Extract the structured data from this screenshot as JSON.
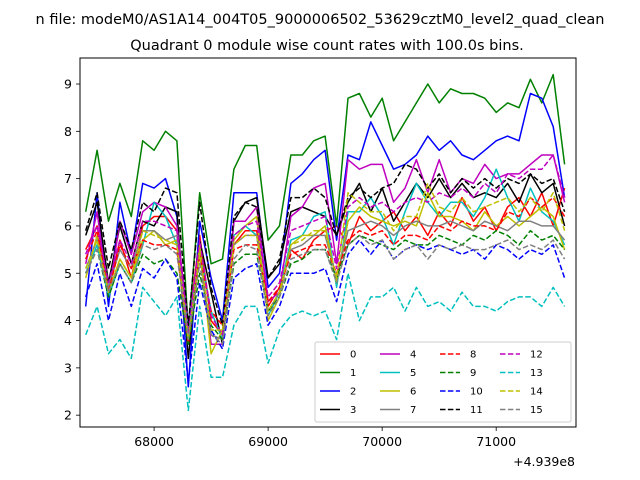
{
  "chart_data": {
    "type": "line",
    "suptitle": "n file: modeM0/AS1A14_004T05_9000006502_53629cztM0_level2_quad_clean",
    "title": "Quadrant 0 module wise count rates with 100.0s bins.",
    "xlabel": "",
    "ylabel": "",
    "x_offset_label": "+4.939e8",
    "xlim": [
      67350,
      71700
    ],
    "ylim": [
      1.75,
      9.55
    ],
    "xticks": [
      68000,
      69000,
      70000,
      71000
    ],
    "xtick_labels": [
      "68000",
      "69000",
      "70000",
      "71000"
    ],
    "yticks": [
      2,
      3,
      4,
      5,
      6,
      7,
      8,
      9
    ],
    "ytick_labels": [
      "2",
      "3",
      "4",
      "5",
      "6",
      "7",
      "8",
      "9"
    ],
    "grid": false,
    "legend_position": "lower-right",
    "x": [
      67400,
      67500,
      67600,
      67700,
      67800,
      67900,
      68000,
      68100,
      68200,
      68300,
      68400,
      68500,
      68600,
      68700,
      68800,
      68900,
      69000,
      69100,
      69200,
      69300,
      69400,
      69500,
      69600,
      69700,
      69800,
      69900,
      70000,
      70100,
      70200,
      70300,
      70400,
      70500,
      70600,
      70700,
      70800,
      70900,
      71000,
      71100,
      71200,
      71300,
      71400,
      71500,
      71600
    ],
    "series": [
      {
        "name": "0",
        "color": "#ff0000",
        "dash": "solid",
        "values": [
          5.5,
          6.0,
          4.6,
          5.7,
          4.9,
          6.0,
          6.2,
          6.2,
          5.9,
          3.8,
          5.8,
          4.0,
          3.7,
          5.6,
          5.9,
          5.9,
          4.3,
          4.7,
          5.5,
          5.3,
          5.7,
          5.9,
          6.0,
          5.6,
          6.2,
          5.9,
          6.1,
          6.3,
          5.9,
          6.2,
          5.8,
          6.3,
          6.0,
          6.6,
          6.1,
          6.4,
          5.9,
          6.4,
          6.6,
          6.2,
          6.7,
          6.0,
          6.8
        ]
      },
      {
        "name": "1",
        "color": "#008000",
        "dash": "solid",
        "values": [
          6.3,
          7.6,
          6.1,
          6.9,
          6.2,
          7.8,
          7.6,
          8.0,
          7.8,
          3.8,
          6.7,
          5.2,
          5.3,
          7.2,
          7.7,
          7.7,
          5.7,
          6.0,
          7.5,
          7.5,
          7.8,
          7.9,
          6.0,
          8.7,
          8.8,
          8.3,
          8.7,
          7.8,
          8.2,
          8.6,
          9.0,
          8.6,
          8.9,
          8.8,
          8.8,
          8.7,
          8.4,
          8.6,
          8.5,
          9.1,
          8.6,
          9.2,
          7.3
        ]
      },
      {
        "name": "2",
        "color": "#0000ff",
        "dash": "solid",
        "values": [
          4.3,
          6.7,
          4.3,
          6.5,
          5.4,
          6.9,
          6.8,
          7.0,
          6.2,
          2.6,
          6.1,
          4.9,
          4.0,
          6.7,
          6.7,
          6.7,
          4.7,
          5.0,
          6.9,
          7.1,
          7.4,
          7.6,
          5.7,
          7.5,
          7.4,
          8.2,
          7.7,
          7.2,
          7.3,
          7.5,
          7.9,
          7.6,
          7.8,
          7.5,
          7.4,
          7.6,
          7.8,
          7.9,
          7.8,
          8.8,
          8.7,
          8.1,
          6.6
        ]
      },
      {
        "name": "3",
        "color": "#000000",
        "dash": "solid",
        "values": [
          5.8,
          6.5,
          4.8,
          6.0,
          5.2,
          6.1,
          6.0,
          6.4,
          6.3,
          3.2,
          5.7,
          4.6,
          3.5,
          6.1,
          6.5,
          6.6,
          4.9,
          5.2,
          6.3,
          6.4,
          6.3,
          6.2,
          5.8,
          6.5,
          6.9,
          6.3,
          6.8,
          6.1,
          6.5,
          6.9,
          6.6,
          7.0,
          6.6,
          6.9,
          6.6,
          6.7,
          6.6,
          6.9,
          6.5,
          7.1,
          6.7,
          6.9,
          6.0
        ]
      },
      {
        "name": "4",
        "color": "#bf00bf",
        "dash": "solid",
        "values": [
          5.2,
          6.3,
          4.5,
          6.1,
          5.4,
          6.3,
          6.5,
          6.4,
          6.0,
          3.9,
          5.6,
          3.5,
          3.5,
          6.1,
          6.1,
          6.4,
          4.4,
          4.6,
          6.2,
          6.4,
          6.8,
          6.9,
          5.2,
          7.4,
          7.2,
          7.3,
          7.3,
          6.5,
          6.8,
          7.4,
          6.7,
          7.4,
          6.7,
          7.0,
          6.9,
          7.3,
          7.0,
          7.1,
          7.1,
          7.3,
          7.5,
          7.5,
          6.5
        ]
      },
      {
        "name": "5",
        "color": "#00bfbf",
        "dash": "solid",
        "values": [
          5.0,
          5.6,
          4.5,
          5.2,
          4.8,
          5.6,
          6.5,
          6.2,
          5.6,
          3.8,
          5.5,
          4.2,
          3.6,
          5.8,
          6.0,
          5.8,
          4.1,
          4.6,
          5.7,
          5.8,
          6.2,
          6.3,
          4.7,
          6.3,
          6.3,
          6.6,
          6.2,
          5.6,
          6.3,
          6.9,
          6.5,
          6.2,
          6.5,
          6.5,
          6.2,
          6.6,
          7.2,
          6.6,
          6.1,
          6.8,
          6.3,
          6.1,
          5.6
        ]
      },
      {
        "name": "6",
        "color": "#bfbf00",
        "dash": "solid",
        "values": [
          4.9,
          5.8,
          4.6,
          5.3,
          4.9,
          5.7,
          5.9,
          5.6,
          5.7,
          3.5,
          5.6,
          3.3,
          3.8,
          5.7,
          6.0,
          6.2,
          4.0,
          4.5,
          5.6,
          5.8,
          5.8,
          6.0,
          4.8,
          6.1,
          6.4,
          6.2,
          6.1,
          6.0,
          6.1,
          6.0,
          6.7,
          6.2,
          6.2,
          6.1,
          5.9,
          6.3,
          6.0,
          6.2,
          6.0,
          6.2,
          6.4,
          6.2,
          5.5
        ]
      },
      {
        "name": "7",
        "color": "#808080",
        "dash": "solid",
        "values": [
          5.1,
          5.7,
          4.7,
          5.5,
          5.1,
          5.9,
          5.9,
          5.7,
          5.8,
          3.6,
          5.4,
          3.7,
          3.6,
          5.6,
          5.8,
          5.8,
          4.2,
          4.6,
          5.5,
          5.6,
          5.8,
          5.8,
          4.9,
          5.9,
          6.0,
          6.1,
          6.0,
          5.8,
          6.0,
          6.1,
          6.0,
          6.0,
          6.1,
          6.0,
          5.9,
          6.1,
          6.0,
          5.9,
          6.1,
          6.1,
          6.0,
          6.0,
          5.7
        ]
      },
      {
        "name": "8",
        "color": "#ff0000",
        "dash": "dashed",
        "values": [
          5.3,
          5.9,
          4.6,
          5.6,
          5.1,
          5.7,
          5.6,
          5.6,
          5.5,
          3.5,
          5.4,
          4.2,
          3.9,
          5.5,
          5.6,
          5.6,
          4.4,
          4.7,
          5.4,
          5.5,
          5.6,
          5.6,
          5.0,
          5.7,
          5.9,
          5.8,
          5.9,
          5.6,
          5.8,
          5.8,
          5.7,
          6.0,
          5.9,
          6.1,
          6.0,
          6.0,
          5.9,
          6.3,
          6.2,
          6.6,
          6.4,
          6.6,
          6.2
        ]
      },
      {
        "name": "9",
        "color": "#008000",
        "dash": "dashed",
        "values": [
          5.0,
          5.5,
          4.5,
          5.2,
          4.8,
          5.4,
          5.2,
          5.3,
          5.0,
          3.5,
          5.0,
          3.9,
          3.6,
          5.2,
          5.4,
          5.4,
          4.2,
          4.5,
          5.2,
          5.3,
          5.5,
          5.5,
          4.9,
          5.6,
          5.8,
          5.7,
          5.6,
          5.5,
          5.7,
          5.6,
          5.6,
          5.8,
          5.7,
          5.6,
          5.8,
          5.7,
          5.9,
          5.8,
          5.6,
          5.9,
          5.7,
          5.8,
          5.5
        ]
      },
      {
        "name": "10",
        "color": "#0000ff",
        "dash": "dashed",
        "values": [
          4.5,
          5.2,
          4.0,
          5.0,
          4.3,
          5.1,
          4.9,
          5.3,
          4.9,
          2.7,
          4.8,
          3.8,
          3.4,
          4.9,
          5.1,
          5.2,
          3.9,
          4.3,
          5.0,
          5.0,
          5.0,
          5.1,
          4.4,
          5.4,
          5.7,
          5.4,
          5.7,
          5.3,
          5.5,
          5.6,
          5.5,
          5.6,
          5.5,
          5.4,
          5.5,
          5.3,
          5.6,
          5.5,
          5.3,
          5.5,
          5.4,
          5.6,
          4.9
        ]
      },
      {
        "name": "11",
        "color": "#000000",
        "dash": "dashed",
        "values": [
          5.9,
          6.7,
          5.1,
          6.1,
          5.5,
          6.5,
          6.3,
          6.8,
          6.7,
          3.9,
          6.5,
          4.7,
          3.9,
          6.2,
          6.5,
          6.4,
          4.9,
          5.3,
          6.6,
          6.6,
          6.8,
          6.6,
          5.8,
          6.6,
          6.8,
          6.6,
          6.8,
          6.9,
          7.3,
          7.2,
          6.8,
          7.1,
          6.7,
          7.0,
          6.8,
          7.0,
          6.8,
          7.0,
          6.9,
          7.1,
          6.9,
          7.0,
          6.3
        ]
      },
      {
        "name": "12",
        "color": "#bf00bf",
        "dash": "dashed",
        "values": [
          5.4,
          6.0,
          4.8,
          5.7,
          5.2,
          6.1,
          6.1,
          6.0,
          5.9,
          3.7,
          5.7,
          4.1,
          3.7,
          5.8,
          6.0,
          6.1,
          4.5,
          4.8,
          5.9,
          6.0,
          6.1,
          6.2,
          5.1,
          6.4,
          6.6,
          6.4,
          6.5,
          6.3,
          6.5,
          6.6,
          6.5,
          6.7,
          6.6,
          6.8,
          6.6,
          6.9,
          6.7,
          7.1,
          7.0,
          7.2,
          7.2,
          7.5,
          6.6
        ]
      },
      {
        "name": "13",
        "color": "#00bfbf",
        "dash": "dashed",
        "values": [
          3.7,
          4.3,
          3.3,
          3.6,
          3.2,
          4.7,
          4.4,
          4.1,
          4.5,
          2.1,
          4.3,
          2.8,
          2.8,
          3.9,
          4.3,
          4.3,
          3.1,
          3.8,
          4.1,
          4.2,
          4.1,
          4.2,
          3.6,
          5.0,
          4.0,
          4.5,
          4.5,
          4.7,
          4.2,
          4.7,
          4.3,
          4.4,
          4.2,
          4.6,
          4.3,
          4.3,
          4.2,
          4.4,
          4.5,
          4.5,
          4.3,
          4.7,
          4.3
        ]
      },
      {
        "name": "14",
        "color": "#bfbf00",
        "dash": "dashed",
        "values": [
          5.1,
          5.7,
          4.6,
          5.3,
          4.9,
          5.9,
          5.8,
          5.7,
          5.6,
          3.6,
          5.4,
          3.8,
          3.8,
          5.6,
          5.8,
          5.8,
          4.2,
          4.6,
          5.6,
          5.7,
          5.9,
          5.9,
          4.9,
          6.7,
          6.5,
          6.3,
          6.3,
          5.9,
          6.2,
          6.2,
          6.9,
          6.4,
          6.3,
          6.6,
          6.3,
          6.4,
          6.5,
          6.6,
          6.3,
          6.6,
          6.3,
          6.7,
          5.9
        ]
      },
      {
        "name": "15",
        "color": "#808080",
        "dash": "dashed",
        "values": [
          5.0,
          5.5,
          4.6,
          5.2,
          4.8,
          5.6,
          5.5,
          5.6,
          5.4,
          3.6,
          5.2,
          3.7,
          3.5,
          5.3,
          5.6,
          5.5,
          4.1,
          4.5,
          5.3,
          5.4,
          5.5,
          5.5,
          4.8,
          5.6,
          5.8,
          5.6,
          5.7,
          5.3,
          5.5,
          5.6,
          5.3,
          5.6,
          5.5,
          5.6,
          5.5,
          5.5,
          5.6,
          5.7,
          5.5,
          5.6,
          5.5,
          5.7,
          5.3
        ]
      }
    ]
  }
}
